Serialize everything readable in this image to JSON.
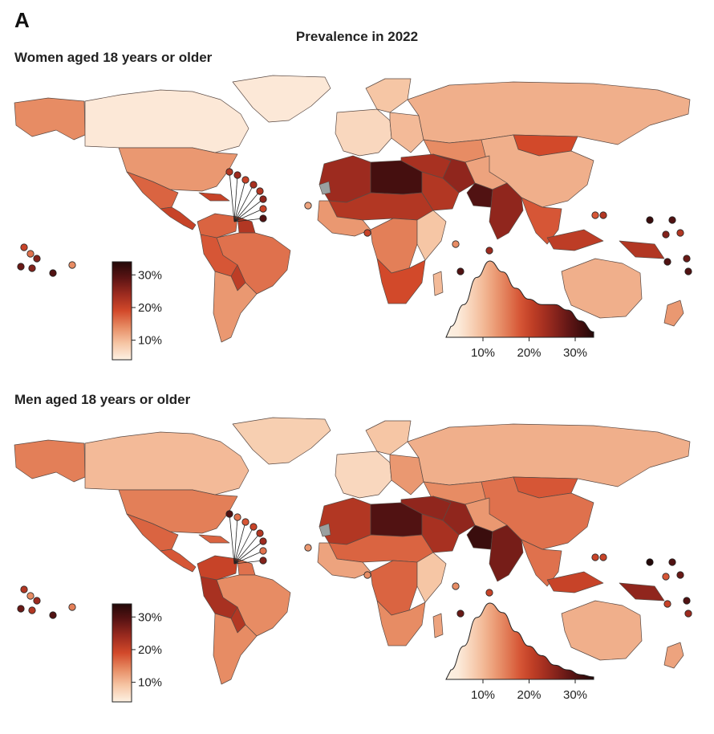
{
  "panel_label": "A",
  "title": "Prevalence in 2022",
  "colors": {
    "scale": [
      "#fdf1e3",
      "#f6c6a5",
      "#e78c64",
      "#d2492a",
      "#9d2b1f",
      "#5c1414",
      "#230808"
    ],
    "ocean": "#ffffff",
    "border": "#5a4a44",
    "no_data": "#9aa0a0"
  },
  "legend": {
    "ticks": [
      "10%",
      "20%",
      "30%"
    ],
    "tick_values": [
      10,
      20,
      30
    ],
    "range": [
      4,
      34
    ]
  },
  "density_axis": {
    "ticks": [
      "10%",
      "20%",
      "30%"
    ],
    "tick_values": [
      10,
      20,
      30
    ],
    "range": [
      2,
      34
    ]
  },
  "panels": [
    {
      "id": "women",
      "title": "Women aged 18 years or older",
      "regions": {
        "alaska": 14,
        "canada": 5,
        "greenland": 5,
        "usa": 13,
        "mexico": 17,
        "central_america": 20,
        "caribbean": 20,
        "colombia_venezuela": 17,
        "guianas": 22,
        "brazil": 16,
        "peru_bolivia": 18,
        "paraguay": 21,
        "argentina_chile": 13,
        "europe_west": 7,
        "scandinavia": 9,
        "europe_east": 10,
        "russia": 11,
        "kazakhstan": 14,
        "mongolia": 19,
        "china": 11,
        "north_africa_west": 24,
        "libya_egypt": 31,
        "sahel": 22,
        "west_africa": 13,
        "central_africa": 15,
        "east_africa": 9,
        "southern_africa": 19,
        "madagascar": 10,
        "middle_east": 23,
        "iran_iraq": 25,
        "arabia": 22,
        "central_asia": 12,
        "pakistan": 30,
        "india": 25,
        "southeast_asia": 18,
        "indonesia": 21,
        "new_guinea": 22,
        "australia": 11,
        "new_zealand": 13
      },
      "density": [
        2,
        6,
        11,
        14,
        12,
        9,
        7,
        6,
        6,
        5,
        3,
        1
      ]
    },
    {
      "id": "men",
      "title": "Men aged 18 years or older",
      "regions": {
        "alaska": 15,
        "canada": 10,
        "greenland": 8,
        "usa": 15,
        "mexico": 17,
        "central_america": 18,
        "caribbean": 17,
        "colombia_venezuela": 20,
        "guianas": 16,
        "brazil": 14,
        "peru_bolivia": 23,
        "paraguay": 22,
        "argentina_chile": 14,
        "europe_west": 7,
        "scandinavia": 9,
        "europe_east": 13,
        "russia": 11,
        "kazakhstan": 14,
        "mongolia": 18,
        "china": 16,
        "north_africa_west": 22,
        "libya_egypt": 30,
        "sahel": 17,
        "west_africa": 12,
        "central_africa": 17,
        "east_africa": 9,
        "southern_africa": 14,
        "madagascar": 12,
        "middle_east": 25,
        "iran_iraq": 25,
        "arabia": 23,
        "central_asia": 13,
        "pakistan": 32,
        "india": 27,
        "southeast_asia": 16,
        "indonesia": 20,
        "new_guinea": 25,
        "australia": 11,
        "new_zealand": 12
      },
      "density": [
        2,
        7,
        13,
        16,
        14,
        10,
        7,
        5,
        3,
        2,
        1,
        0.5
      ]
    }
  ]
}
